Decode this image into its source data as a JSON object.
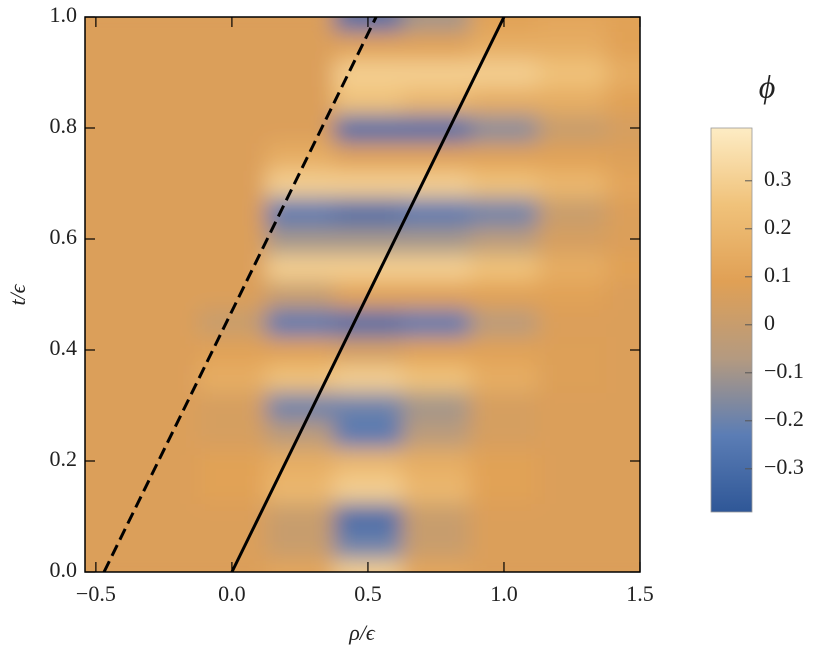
{
  "chart_data": {
    "type": "heatmap",
    "x_label": "ρ/ϵ",
    "y_label": "t/ϵ",
    "colorbar_title": "ϕ",
    "x": [
      -0.5,
      -0.25,
      0,
      0.25,
      0.5,
      0.75,
      1.0,
      1.25,
      1.5
    ],
    "y": [
      0,
      0.05,
      0.1,
      0.15,
      0.2,
      0.25,
      0.3,
      0.35,
      0.4,
      0.45,
      0.5,
      0.55,
      0.6,
      0.65,
      0.7,
      0.75,
      0.8,
      0.85,
      0.9,
      0.95,
      1.0
    ],
    "z": [
      [
        0.07,
        0.07,
        0.07,
        0.12,
        0.3,
        0.12,
        0.07,
        0.07,
        0.07
      ],
      [
        0.07,
        0.07,
        0.07,
        0.0,
        -0.2,
        0.0,
        0.07,
        0.07,
        0.07
      ],
      [
        0.07,
        0.07,
        0.07,
        0.0,
        -0.3,
        0.0,
        0.07,
        0.07,
        0.07
      ],
      [
        0.07,
        0.07,
        0.1,
        0.2,
        0.3,
        0.2,
        0.1,
        0.07,
        0.07
      ],
      [
        0.07,
        0.07,
        0.1,
        0.15,
        0.2,
        0.15,
        0.1,
        0.07,
        0.07
      ],
      [
        0.07,
        0.07,
        0.05,
        -0.05,
        -0.25,
        -0.05,
        0.05,
        0.07,
        0.07
      ],
      [
        0.07,
        0.07,
        0.05,
        -0.2,
        -0.2,
        -0.1,
        0.05,
        0.07,
        0.07
      ],
      [
        0.07,
        0.07,
        0.15,
        0.25,
        0.3,
        0.25,
        0.15,
        0.08,
        0.07
      ],
      [
        0.07,
        0.07,
        0.1,
        0.1,
        0.05,
        0.1,
        0.1,
        0.08,
        0.07
      ],
      [
        0.07,
        0.07,
        0.0,
        -0.25,
        -0.3,
        -0.25,
        -0.05,
        0.07,
        0.07
      ],
      [
        0.07,
        0.07,
        0.07,
        0.0,
        0.1,
        0.1,
        0.1,
        0.1,
        0.07
      ],
      [
        0.07,
        0.07,
        0.07,
        0.3,
        0.3,
        0.3,
        0.25,
        0.15,
        0.1
      ],
      [
        0.07,
        0.07,
        0.07,
        -0.1,
        -0.1,
        -0.1,
        -0.05,
        0.05,
        0.07
      ],
      [
        0.07,
        0.07,
        0.07,
        -0.25,
        -0.3,
        -0.25,
        -0.2,
        0.0,
        0.07
      ],
      [
        0.07,
        0.07,
        0.07,
        0.3,
        0.3,
        0.3,
        0.25,
        0.2,
        0.12
      ],
      [
        0.07,
        0.07,
        0.07,
        0.15,
        0.1,
        0.1,
        0.1,
        0.1,
        0.08
      ],
      [
        0.07,
        0.07,
        0.07,
        0.07,
        -0.3,
        -0.3,
        -0.15,
        0.0,
        0.05
      ],
      [
        0.07,
        0.07,
        0.07,
        0.07,
        0.25,
        0.2,
        0.15,
        0.15,
        0.1
      ],
      [
        0.07,
        0.07,
        0.07,
        0.07,
        0.3,
        0.3,
        0.3,
        0.25,
        0.15
      ],
      [
        0.07,
        0.07,
        0.07,
        0.07,
        0.1,
        0.1,
        0.15,
        0.15,
        0.1
      ],
      [
        0.07,
        0.07,
        0.07,
        0.07,
        -0.3,
        -0.1,
        0.1,
        0.12,
        0.1
      ]
    ],
    "background_value": 0.07,
    "colorscale": [
      "#2f5797",
      "#5b7db5",
      "#b49a80",
      "#e0a055",
      "#f0c27a",
      "#fdecc4"
    ],
    "clim": [
      -0.39,
      0.41
    ],
    "lines": [
      {
        "x": [
          -0.47,
          0.53
        ],
        "y": [
          0,
          1
        ],
        "color": "#000",
        "dashed": true
      },
      {
        "x": [
          0,
          1
        ],
        "y": [
          0,
          1
        ],
        "color": "#000",
        "dashed": false
      }
    ],
    "xlim": [
      -0.54,
      1.5
    ],
    "ylim": [
      0,
      1
    ],
    "xticks": [
      {
        "value": -0.5,
        "label": "−0.5"
      },
      {
        "value": 0,
        "label": "0.0"
      },
      0.5,
      {
        "value": 1,
        "label": "1.0"
      },
      1.5
    ],
    "yticks": [
      {
        "value": 0,
        "label": "0.0"
      },
      0.2,
      0.4,
      0.6,
      0.8,
      {
        "value": 1,
        "label": "1.0"
      }
    ],
    "cticks": [
      {
        "value": -0.3,
        "label": "−0.3"
      },
      {
        "value": -0.2,
        "label": "−0.2"
      },
      {
        "value": -0.1,
        "label": "−0.1"
      },
      0,
      0.1,
      0.2,
      0.3
    ]
  }
}
